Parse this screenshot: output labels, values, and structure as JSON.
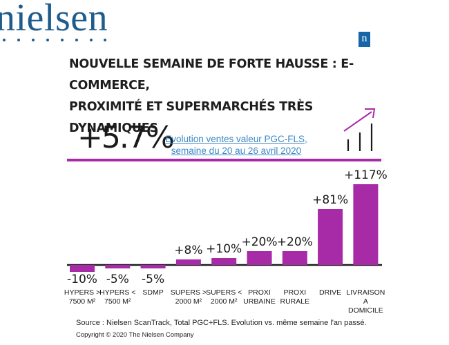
{
  "brand": {
    "logo_text": "nielsen",
    "badge_letter": "n"
  },
  "header": {
    "title_line1": "NOUVELLE SEMAINE DE FORTE HAUSSE : E-COMMERCE,",
    "title_line2": "PROXIMITÉ ET SUPERMARCHÉS TRÈS DYNAMIQUES"
  },
  "summary": {
    "total_growth": "+5.7%",
    "label_line1": "Evolution ventes valeur PGC-FLS,",
    "label_line2": "semaine du 20 au 26 avril 2020"
  },
  "colors": {
    "accent": "#a72aa6",
    "brand": "#1e5c8c",
    "link": "#3b87c4"
  },
  "icons": [
    "trend-up-arrow-icon"
  ],
  "chart_data": {
    "type": "bar",
    "categories": [
      [
        "HYPERS >",
        "7500 M²"
      ],
      [
        "HYPERS <",
        "7500 M²"
      ],
      [
        "SDMP"
      ],
      [
        "SUPERS >",
        "2000 M²"
      ],
      [
        "SUPERS <",
        "2000 M²"
      ],
      [
        "PROXI",
        "URBAINE"
      ],
      [
        "PROXI",
        "RURALE"
      ],
      [
        "DRIVE"
      ],
      [
        "LIVRAISON",
        "A",
        "DOMICILE"
      ]
    ],
    "values": [
      -10,
      -5,
      -5,
      8,
      10,
      20,
      20,
      81,
      117
    ],
    "data_labels": [
      "-10%",
      "-5%",
      "-5%",
      "+8%",
      "+10%",
      "+20%",
      "+20%",
      "+81%",
      "+117%"
    ],
    "bar_color": "#a72aa6",
    "ylim": [
      -10,
      117
    ],
    "grid": false,
    "legend": "none"
  },
  "footer": {
    "source": "Source : Nielsen ScanTrack, Total PGC+FLS. Evolution vs. même semaine l'an passé.",
    "copyright": "Copyright © 2020 The Nielsen Company"
  }
}
